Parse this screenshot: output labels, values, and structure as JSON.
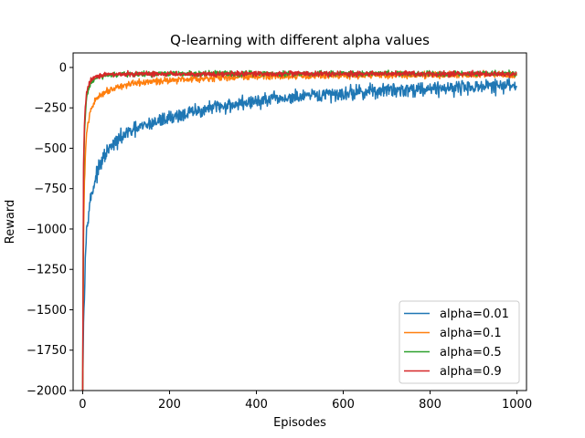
{
  "chart_data": {
    "type": "line",
    "title": "Q-learning with different alpha values",
    "xlabel": "Episodes",
    "ylabel": "Reward",
    "xlim": [
      -22,
      1022
    ],
    "ylim": [
      -2000,
      90
    ],
    "xticks": [
      0,
      200,
      400,
      600,
      800,
      1000
    ],
    "yticks": [
      0,
      -250,
      -500,
      -750,
      -1000,
      -1250,
      -1500,
      -1750,
      -2000
    ],
    "ytick_labels": [
      "0",
      "−250",
      "−500",
      "−750",
      "−1000",
      "−1250",
      "−1500",
      "−1750",
      "−2000"
    ],
    "grid": false,
    "legend_position": "lower-right",
    "x_start": 0,
    "x_end": 999,
    "series": [
      {
        "name": "alpha=0.01",
        "color": "#1f77b4",
        "points": [
          [
            0,
            -2000
          ],
          [
            2,
            -1580
          ],
          [
            4,
            -1400
          ],
          [
            6,
            -1180
          ],
          [
            8,
            -1050
          ],
          [
            10,
            -980
          ],
          [
            12,
            -920
          ],
          [
            15,
            -860
          ],
          [
            20,
            -790
          ],
          [
            25,
            -740
          ],
          [
            30,
            -680
          ],
          [
            40,
            -610
          ],
          [
            50,
            -550
          ],
          [
            60,
            -510
          ],
          [
            80,
            -455
          ],
          [
            100,
            -410
          ],
          [
            130,
            -375
          ],
          [
            160,
            -345
          ],
          [
            200,
            -310
          ],
          [
            250,
            -280
          ],
          [
            300,
            -250
          ],
          [
            350,
            -228
          ],
          [
            400,
            -210
          ],
          [
            450,
            -195
          ],
          [
            500,
            -185
          ],
          [
            550,
            -172
          ],
          [
            600,
            -160
          ],
          [
            650,
            -150
          ],
          [
            700,
            -142
          ],
          [
            750,
            -135
          ],
          [
            800,
            -130
          ],
          [
            850,
            -125
          ],
          [
            900,
            -120
          ],
          [
            950,
            -116
          ],
          [
            999,
            -112
          ]
        ],
        "noise": 22
      },
      {
        "name": "alpha=0.1",
        "color": "#ff7f0e",
        "points": [
          [
            0,
            -2000
          ],
          [
            2,
            -1050
          ],
          [
            4,
            -720
          ],
          [
            6,
            -560
          ],
          [
            8,
            -450
          ],
          [
            10,
            -390
          ],
          [
            15,
            -310
          ],
          [
            20,
            -255
          ],
          [
            30,
            -200
          ],
          [
            40,
            -170
          ],
          [
            60,
            -140
          ],
          [
            80,
            -120
          ],
          [
            100,
            -108
          ],
          [
            150,
            -90
          ],
          [
            200,
            -78
          ],
          [
            250,
            -70
          ],
          [
            300,
            -64
          ],
          [
            350,
            -60
          ],
          [
            400,
            -57
          ],
          [
            500,
            -53
          ],
          [
            600,
            -50
          ],
          [
            700,
            -48
          ],
          [
            800,
            -47
          ],
          [
            900,
            -46
          ],
          [
            999,
            -45
          ]
        ],
        "noise": 10
      },
      {
        "name": "alpha=0.5",
        "color": "#2ca02c",
        "points": [
          [
            0,
            -2000
          ],
          [
            2,
            -700
          ],
          [
            4,
            -420
          ],
          [
            6,
            -300
          ],
          [
            8,
            -225
          ],
          [
            10,
            -180
          ],
          [
            15,
            -120
          ],
          [
            20,
            -90
          ],
          [
            30,
            -68
          ],
          [
            40,
            -58
          ],
          [
            60,
            -50
          ],
          [
            80,
            -45
          ],
          [
            100,
            -42
          ],
          [
            200,
            -40
          ],
          [
            400,
            -38
          ],
          [
            600,
            -37
          ],
          [
            800,
            -37
          ],
          [
            999,
            -37
          ]
        ],
        "noise": 8
      },
      {
        "name": "alpha=0.9",
        "color": "#d62728",
        "points": [
          [
            0,
            -2000
          ],
          [
            2,
            -600
          ],
          [
            4,
            -360
          ],
          [
            6,
            -250
          ],
          [
            8,
            -185
          ],
          [
            10,
            -145
          ],
          [
            15,
            -95
          ],
          [
            20,
            -72
          ],
          [
            30,
            -55
          ],
          [
            40,
            -48
          ],
          [
            60,
            -44
          ],
          [
            80,
            -42
          ],
          [
            100,
            -41
          ],
          [
            200,
            -40
          ],
          [
            400,
            -40
          ],
          [
            600,
            -40
          ],
          [
            800,
            -40
          ],
          [
            999,
            -40
          ]
        ],
        "noise": 8
      }
    ]
  }
}
